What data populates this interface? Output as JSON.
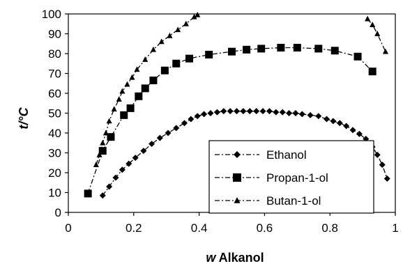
{
  "chart_data": {
    "type": "line",
    "xlabel_prefix": "w",
    "xlabel_rest": " Alkanol",
    "ylabel": "t/°C",
    "xlim": [
      0,
      1
    ],
    "ylim": [
      0,
      100
    ],
    "xticks": [
      "0",
      "0.2",
      "0.4",
      "0.6",
      "0.8",
      "1"
    ],
    "yticks": [
      "0",
      "10",
      "20",
      "30",
      "40",
      "50",
      "60",
      "70",
      "80",
      "90",
      "100"
    ],
    "grid": false,
    "legend_position": "bottom-right",
    "series": [
      {
        "name": "Ethanol",
        "marker": "diamond",
        "points": [
          [
            0.105,
            8.5
          ],
          [
            0.125,
            13
          ],
          [
            0.145,
            17.5
          ],
          [
            0.165,
            21.5
          ],
          [
            0.185,
            24.5
          ],
          [
            0.205,
            27.5
          ],
          [
            0.23,
            31
          ],
          [
            0.255,
            34.5
          ],
          [
            0.28,
            37.5
          ],
          [
            0.305,
            40
          ],
          [
            0.33,
            42.5
          ],
          [
            0.355,
            45
          ],
          [
            0.375,
            47
          ],
          [
            0.395,
            48.5
          ],
          [
            0.415,
            49.5
          ],
          [
            0.435,
            50
          ],
          [
            0.455,
            50.5
          ],
          [
            0.475,
            51
          ],
          [
            0.495,
            51
          ],
          [
            0.515,
            51
          ],
          [
            0.535,
            51
          ],
          [
            0.555,
            51
          ],
          [
            0.575,
            51
          ],
          [
            0.595,
            51
          ],
          [
            0.615,
            51
          ],
          [
            0.635,
            50.5
          ],
          [
            0.655,
            50.5
          ],
          [
            0.675,
            50
          ],
          [
            0.695,
            50
          ],
          [
            0.715,
            49.5
          ],
          [
            0.74,
            49
          ],
          [
            0.765,
            48.5
          ],
          [
            0.79,
            47
          ],
          [
            0.81,
            46
          ],
          [
            0.83,
            45
          ],
          [
            0.85,
            43.5
          ],
          [
            0.87,
            41.5
          ],
          [
            0.89,
            39.5
          ],
          [
            0.91,
            37
          ],
          [
            0.93,
            33
          ],
          [
            0.945,
            29
          ],
          [
            0.96,
            24
          ],
          [
            0.975,
            17
          ]
        ]
      },
      {
        "name": "Propan-1-ol",
        "marker": "square",
        "points": [
          [
            0.06,
            9.5
          ],
          [
            0.105,
            31
          ],
          [
            0.13,
            38
          ],
          [
            0.17,
            49
          ],
          [
            0.19,
            52.5
          ],
          [
            0.215,
            58.5
          ],
          [
            0.235,
            62.5
          ],
          [
            0.26,
            66.5
          ],
          [
            0.295,
            71.5
          ],
          [
            0.33,
            75
          ],
          [
            0.37,
            77.5
          ],
          [
            0.43,
            79.5
          ],
          [
            0.5,
            81
          ],
          [
            0.545,
            82
          ],
          [
            0.59,
            82.5
          ],
          [
            0.65,
            83
          ],
          [
            0.7,
            83
          ],
          [
            0.765,
            82.5
          ],
          [
            0.815,
            81.5
          ],
          [
            0.885,
            78.5
          ],
          [
            0.93,
            71
          ]
        ]
      },
      {
        "name": "Butan-1-ol",
        "marker": "triangle",
        "points": [
          [
            0.085,
            24
          ],
          [
            0.095,
            29
          ],
          [
            0.105,
            35
          ],
          [
            0.115,
            40
          ],
          [
            0.125,
            46
          ],
          [
            0.14,
            52
          ],
          [
            0.155,
            57
          ],
          [
            0.165,
            61
          ],
          [
            0.18,
            64.5
          ],
          [
            0.195,
            68
          ],
          [
            0.21,
            72
          ],
          [
            0.235,
            77
          ],
          [
            0.26,
            82
          ],
          [
            0.285,
            86
          ],
          [
            0.31,
            89
          ],
          [
            0.335,
            92
          ],
          [
            0.36,
            95
          ],
          [
            0.385,
            98.5
          ],
          [
            0.395,
            99.5
          ],
          [
            0.915,
            97.5
          ],
          [
            0.93,
            94.5
          ],
          [
            0.945,
            90
          ],
          [
            0.97,
            81
          ]
        ]
      }
    ]
  }
}
